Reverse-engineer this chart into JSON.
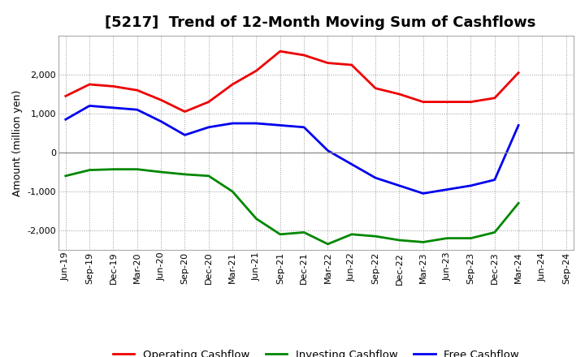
{
  "title": "[5217]  Trend of 12-Month Moving Sum of Cashflows",
  "ylabel": "Amount (million yen)",
  "x_labels": [
    "Jun-19",
    "Sep-19",
    "Dec-19",
    "Mar-20",
    "Jun-20",
    "Sep-20",
    "Dec-20",
    "Mar-21",
    "Jun-21",
    "Sep-21",
    "Dec-21",
    "Mar-22",
    "Jun-22",
    "Sep-22",
    "Dec-22",
    "Mar-23",
    "Jun-23",
    "Sep-23",
    "Dec-23",
    "Mar-24",
    "Jun-24",
    "Sep-24"
  ],
  "operating": [
    1450,
    1750,
    1700,
    1600,
    1350,
    1050,
    1300,
    1750,
    2100,
    2600,
    2500,
    2300,
    2250,
    1650,
    1500,
    1300,
    1300,
    1300,
    1400,
    2050,
    null,
    null
  ],
  "investing": [
    -600,
    -450,
    -430,
    -430,
    -500,
    -560,
    -600,
    -1000,
    -1700,
    -2100,
    -2050,
    -2350,
    -2100,
    -2150,
    -2250,
    -2300,
    -2200,
    -2200,
    -2050,
    -1300,
    null,
    null
  ],
  "free": [
    850,
    1200,
    1150,
    1100,
    800,
    450,
    650,
    750,
    750,
    700,
    650,
    50,
    -300,
    -650,
    -850,
    -1050,
    -950,
    -850,
    -700,
    700,
    null,
    null
  ],
  "ylim": [
    -2500,
    3000
  ],
  "yticks": [
    -2000,
    -1000,
    0,
    1000,
    2000
  ],
  "operating_color": "#ee0000",
  "investing_color": "#008800",
  "free_color": "#0000ee",
  "background_color": "#ffffff",
  "plot_bg_color": "#ffffff",
  "grid_color": "#999999",
  "linewidth": 2.0,
  "title_fontsize": 13,
  "ylabel_fontsize": 9,
  "legend_fontsize": 9.5,
  "tick_fontsize": 8
}
